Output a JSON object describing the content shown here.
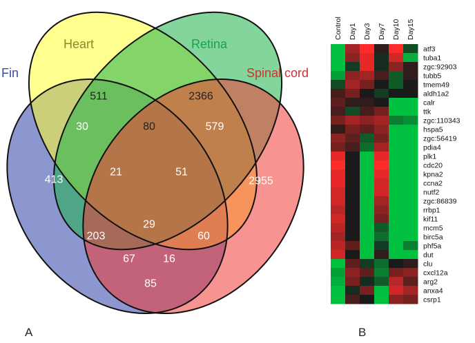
{
  "figure": {
    "panel_a_label": "A",
    "panel_b_label": "B"
  },
  "venn": {
    "sets": [
      {
        "name": "Fin",
        "color": "#2e3fa8",
        "label_color": "#3a4aa6"
      },
      {
        "name": "Heart",
        "color": "#ffff33",
        "label_color": "#8a8a2a"
      },
      {
        "name": "Retina",
        "color": "#1db34a",
        "label_color": "#1aa34a"
      },
      {
        "name": "Spinal cord",
        "color": "#f03a35",
        "label_color": "#cc3333"
      }
    ],
    "regions": {
      "fin_only": "413",
      "heart_only": "511",
      "retina_only": "2366",
      "spinal_only": "2955",
      "fin_heart": "30",
      "heart_retina": "80",
      "retina_spinal": "579",
      "fin_heart_retina": "21",
      "heart_retina_spinal": "51",
      "fin_retina": "203",
      "heart_spinal": "60",
      "all_four": "29",
      "fin_retina_spinal": "67",
      "fin_heart_spinal": "16",
      "fin_spinal": "85"
    }
  },
  "heatmap": {
    "conditions": [
      "Control",
      "Day1",
      "Day3",
      "Day7",
      "Day10",
      "Day15"
    ],
    "colors": {
      "up": "#ff2a2a",
      "down": "#00c040",
      "neutral": "#1a1a1a"
    },
    "genes": [
      {
        "name": "atf3",
        "values": [
          -1.0,
          0.6,
          1.0,
          0.1,
          1.0,
          -0.3
        ]
      },
      {
        "name": "tuba1",
        "values": [
          -1.0,
          0.5,
          0.9,
          -0.1,
          0.8,
          -0.9
        ]
      },
      {
        "name": "zgc:92903",
        "values": [
          -1.0,
          -0.2,
          0.9,
          -0.1,
          0.5,
          0.1
        ]
      },
      {
        "name": "tubb5",
        "values": [
          -0.8,
          0.5,
          0.6,
          0.2,
          -0.4,
          0.1
        ]
      },
      {
        "name": "tmem49",
        "values": [
          -0.3,
          0.6,
          0.4,
          0.0,
          -0.4,
          0.0
        ]
      },
      {
        "name": "aldh1a2",
        "values": [
          0.2,
          0.4,
          0.0,
          -0.2,
          0.0,
          0.0
        ]
      },
      {
        "name": "calr",
        "values": [
          0.3,
          0.1,
          0.1,
          0.0,
          -1.0,
          -1.0
        ]
      },
      {
        "name": "ttk",
        "values": [
          0.2,
          -0.3,
          0.2,
          0.4,
          -1.0,
          -1.0
        ]
      },
      {
        "name": "zgc:110343",
        "values": [
          0.4,
          0.6,
          0.5,
          0.6,
          -0.6,
          -0.7
        ]
      },
      {
        "name": "hspa5",
        "values": [
          0.1,
          0.4,
          0.3,
          0.5,
          -1.0,
          -1.0
        ]
      },
      {
        "name": "zgc:56419",
        "values": [
          0.5,
          0.3,
          -0.4,
          0.4,
          -1.0,
          -1.0
        ]
      },
      {
        "name": "pdia4",
        "values": [
          0.4,
          0.2,
          -0.5,
          0.6,
          -1.0,
          -1.0
        ]
      },
      {
        "name": "plk1",
        "values": [
          0.9,
          0.0,
          -1.0,
          0.9,
          -1.0,
          -1.0
        ]
      },
      {
        "name": "cdc20",
        "values": [
          1.0,
          0.0,
          -1.0,
          1.0,
          -1.0,
          -1.0
        ]
      },
      {
        "name": "kpna2",
        "values": [
          0.9,
          0.0,
          -1.0,
          0.9,
          -1.0,
          -1.0
        ]
      },
      {
        "name": "ccna2",
        "values": [
          0.9,
          0.0,
          -1.0,
          0.8,
          -1.0,
          -1.0
        ]
      },
      {
        "name": "nutf2",
        "values": [
          0.8,
          0.0,
          -1.0,
          0.8,
          -1.0,
          -1.0
        ]
      },
      {
        "name": "zgc:86839",
        "values": [
          0.8,
          0.0,
          -1.0,
          0.6,
          -1.0,
          -1.0
        ]
      },
      {
        "name": "rrbp1",
        "values": [
          0.7,
          0.0,
          -1.0,
          0.5,
          -1.0,
          -1.0
        ]
      },
      {
        "name": "kif11",
        "values": [
          0.8,
          0.0,
          -1.0,
          0.4,
          -1.0,
          -1.0
        ]
      },
      {
        "name": "mcm5",
        "values": [
          0.7,
          0.0,
          -1.0,
          -0.4,
          -1.0,
          -1.0
        ]
      },
      {
        "name": "birc5a",
        "values": [
          0.6,
          0.0,
          -1.0,
          -0.5,
          -1.0,
          -1.0
        ]
      },
      {
        "name": "phf5a",
        "values": [
          0.7,
          0.3,
          -1.0,
          -0.2,
          -1.0,
          -0.6
        ]
      },
      {
        "name": "dut",
        "values": [
          0.8,
          0.0,
          -1.0,
          0.1,
          -1.0,
          -1.0
        ]
      },
      {
        "name": "clu",
        "values": [
          -1.0,
          0.3,
          -0.2,
          -0.5,
          0.0,
          0.1
        ]
      },
      {
        "name": "cxcl12a",
        "values": [
          -0.8,
          0.5,
          0.3,
          -0.6,
          0.4,
          0.5
        ]
      },
      {
        "name": "arg2",
        "values": [
          -0.9,
          0.4,
          -0.1,
          -0.4,
          0.7,
          0.3
        ]
      },
      {
        "name": "anxa4",
        "values": [
          -1.0,
          -0.1,
          0.4,
          -1.0,
          0.8,
          0.6
        ]
      },
      {
        "name": "csrp1",
        "values": [
          -1.0,
          0.2,
          0.0,
          -1.0,
          0.5,
          0.4
        ]
      }
    ]
  }
}
